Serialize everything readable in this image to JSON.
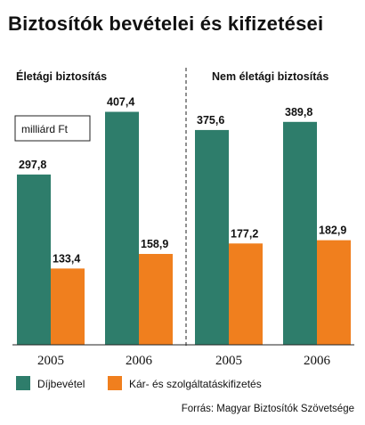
{
  "chart_data": {
    "type": "bar",
    "title": "Biztosítók bevételei és kifizetései",
    "unit": "milliárd Ft",
    "groups": [
      {
        "title": "Életági biztosítás",
        "categories": [
          "2005",
          "2006"
        ],
        "series": [
          {
            "name": "Díjbevétel",
            "values": [
              297.8,
              407.4
            ],
            "labels": [
              "297,8",
              "407,4"
            ],
            "color": "#2e7d6b"
          },
          {
            "name": "Kár- és szolgáltatáskifizetés",
            "values": [
              133.4,
              158.9
            ],
            "labels": [
              "133,4",
              "158,9"
            ],
            "color": "#f07f1e"
          }
        ]
      },
      {
        "title": "Nem életági biztosítás",
        "categories": [
          "2005",
          "2006"
        ],
        "series": [
          {
            "name": "Díjbevétel",
            "values": [
              375.6,
              389.8
            ],
            "labels": [
              "375,6",
              "389,8"
            ],
            "color": "#2e7d6b"
          },
          {
            "name": "Kár- és szolgáltatáskifizetés",
            "values": [
              177.2,
              182.9
            ],
            "labels": [
              "177,2",
              "182,9"
            ],
            "color": "#f07f1e"
          }
        ]
      }
    ],
    "ylim": [
      0,
      430
    ],
    "legend": [
      {
        "name": "Díjbevétel",
        "color": "#2e7d6b"
      },
      {
        "name": "Kár- és szolgáltatáskifizetés",
        "color": "#f07f1e"
      }
    ],
    "legend_position": "bottom",
    "grid": false,
    "source": "Forrás: Magyar Biztosítók Szövetsége"
  }
}
